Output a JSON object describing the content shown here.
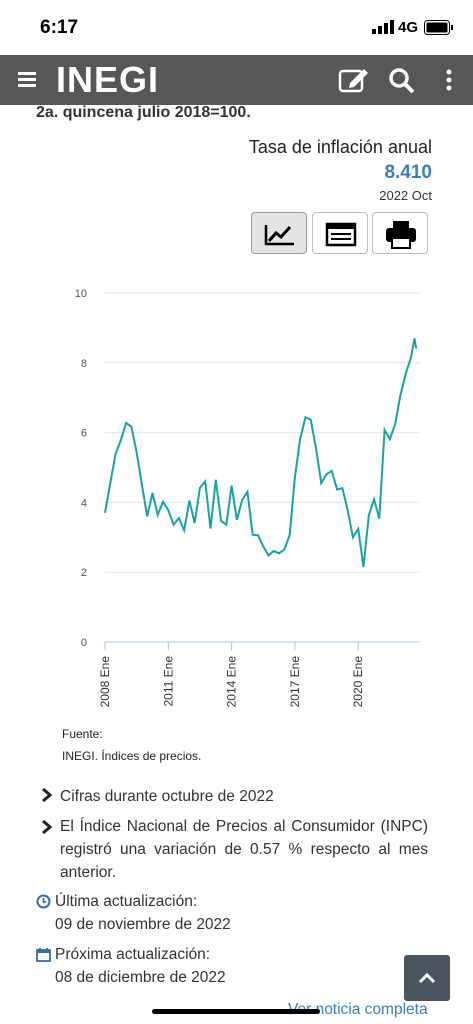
{
  "status_bar": {
    "time": "6:17",
    "network": "4G"
  },
  "header": {
    "logo": "INEGI"
  },
  "subtitle_cut": "2a. quincena julio 2018=100.",
  "indicator": {
    "title": "Tasa de inflación anual",
    "value": "8.410",
    "period": "2022 Oct"
  },
  "chart_data": {
    "type": "line",
    "x": [
      2008,
      2008.25,
      2008.5,
      2008.75,
      2009,
      2009.25,
      2009.5,
      2009.75,
      2010,
      2010.25,
      2010.5,
      2010.75,
      2011,
      2011.25,
      2011.5,
      2011.75,
      2012,
      2012.25,
      2012.5,
      2012.75,
      2013,
      2013.25,
      2013.5,
      2013.75,
      2014,
      2014.25,
      2014.5,
      2014.75,
      2015,
      2015.25,
      2015.5,
      2015.75,
      2016,
      2016.25,
      2016.5,
      2016.75,
      2017,
      2017.25,
      2017.5,
      2017.75,
      2018,
      2018.25,
      2018.5,
      2018.75,
      2019,
      2019.25,
      2019.5,
      2019.75,
      2020,
      2020.25,
      2020.5,
      2020.75,
      2021,
      2021.25,
      2021.5,
      2021.75,
      2022,
      2022.25,
      2022.5,
      2022.667,
      2022.75
    ],
    "series": [
      {
        "name": "Tasa de inflación anual",
        "color": "#1aa3a0",
        "values": [
          3.7,
          4.55,
          5.39,
          5.78,
          6.28,
          6.17,
          5.44,
          4.5,
          3.6,
          4.27,
          3.64,
          4.02,
          3.78,
          3.36,
          3.55,
          3.2,
          4.05,
          3.41,
          4.42,
          4.6,
          3.25,
          4.65,
          3.47,
          3.36,
          4.48,
          3.5,
          4.07,
          4.3,
          3.07,
          3.06,
          2.74,
          2.48,
          2.61,
          2.54,
          2.65,
          3.06,
          4.72,
          5.82,
          6.44,
          6.37,
          5.55,
          4.55,
          4.81,
          4.9,
          4.37,
          4.41,
          3.78,
          3.0,
          3.24,
          2.15,
          3.62,
          4.09,
          3.54,
          6.08,
          5.81,
          6.24,
          7.07,
          7.68,
          8.15,
          8.7,
          8.41
        ]
      }
    ],
    "xlim": [
      2008,
      2022.9
    ],
    "xticks": [
      {
        "value": 2008,
        "label": "2008 Ene"
      },
      {
        "value": 2011,
        "label": "2011 Ene"
      },
      {
        "value": 2014,
        "label": "2014 Ene"
      },
      {
        "value": 2017,
        "label": "2017 Ene"
      },
      {
        "value": 2020,
        "label": "2020 Ene"
      }
    ],
    "ylim": [
      0,
      10
    ],
    "yticks": [
      0,
      2,
      4,
      6,
      8,
      10
    ],
    "grid": true
  },
  "source": {
    "label": "Fuente:",
    "text": "INEGI. Índices de precios."
  },
  "bullets": [
    "Cifras durante octubre de 2022",
    "El Índice Nacional de Precios al Consumidor (INPC) registró una variación de 0.57 % respecto al mes anterior."
  ],
  "updates": {
    "last_label": "Última actualización:",
    "last_date": "09 de noviembre de 2022",
    "next_label": "Próxima actualización:",
    "next_date": "08 de diciembre de 2022"
  },
  "link": "Ver noticia completa"
}
